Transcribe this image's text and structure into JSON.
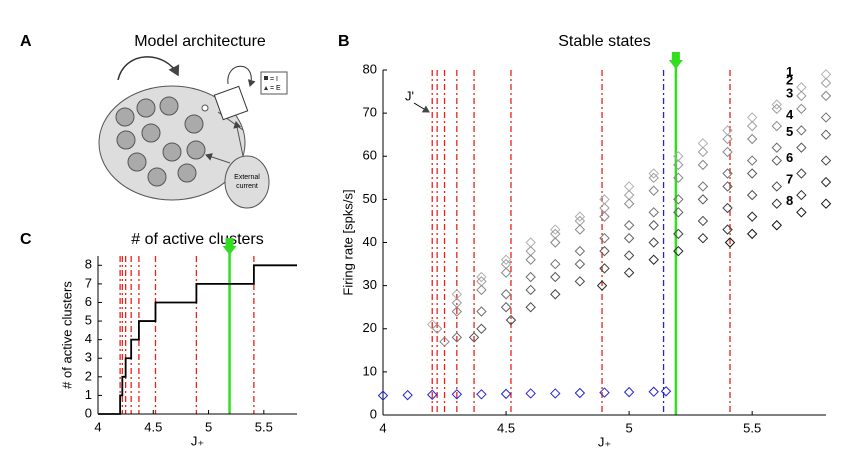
{
  "panel_labels": [
    "A",
    "B",
    "C"
  ],
  "diagram": {
    "title": "Model architecture",
    "legend": [
      "= I",
      "= E"
    ],
    "input_label": [
      "External",
      "current"
    ]
  },
  "chart_data": [
    {
      "type": "scatter",
      "title": "Stable states",
      "xlabel": "J₊",
      "ylabel": "Firing rate [spks/s]",
      "xlim": [
        4,
        5.8
      ],
      "ylim": [
        0,
        80
      ],
      "xticks": [
        4,
        4.5,
        5,
        5.5
      ],
      "yticks": [
        0,
        10,
        20,
        30,
        40,
        50,
        60,
        70,
        80
      ],
      "annotation": "J'",
      "vlines": [
        {
          "x": 4.2,
          "color": "#e8221b"
        },
        {
          "x": 4.22,
          "color": "#e8221b"
        },
        {
          "x": 4.25,
          "color": "#e8221b"
        },
        {
          "x": 4.3,
          "color": "#e8221b"
        },
        {
          "x": 4.37,
          "color": "#e8221b"
        },
        {
          "x": 4.52,
          "color": "#e8221b"
        },
        {
          "x": 4.89,
          "color": "#e8221b"
        },
        {
          "x": 5.41,
          "color": "#e8221b"
        },
        {
          "x": 5.14,
          "color": "#2323d6"
        }
      ],
      "marker_x": 5.19,
      "marker_color": "#33dd22",
      "series": [
        {
          "name": "1",
          "color": "#b0b0b0",
          "x": [
            4.2,
            4.3,
            4.4,
            4.5,
            4.6,
            4.7,
            4.8,
            4.9,
            5.0,
            5.1,
            5.2,
            5.3,
            5.4,
            5.5,
            5.6,
            5.7,
            5.8
          ],
          "values": [
            21,
            28,
            32,
            36,
            40,
            43,
            46,
            50,
            53,
            56,
            60,
            63,
            66,
            69,
            72,
            76,
            79
          ]
        },
        {
          "name": "2",
          "color": "#9a9a9a",
          "x": [
            4.22,
            4.3,
            4.4,
            4.5,
            4.6,
            4.7,
            4.8,
            4.9,
            5.0,
            5.1,
            5.2,
            5.3,
            5.4,
            5.5,
            5.6,
            5.7,
            5.8
          ],
          "values": [
            20,
            26,
            31,
            35,
            38,
            42,
            45,
            48,
            51,
            55,
            58,
            61,
            64,
            67,
            71,
            74,
            77
          ]
        },
        {
          "name": "3",
          "color": "#858585",
          "x": [
            4.25,
            4.3,
            4.4,
            4.5,
            4.6,
            4.7,
            4.8,
            4.9,
            5.0,
            5.1,
            5.2,
            5.3,
            5.4,
            5.5,
            5.6,
            5.7,
            5.8
          ],
          "values": [
            17,
            24,
            29,
            33,
            36,
            40,
            43,
            46,
            49,
            52,
            55,
            58,
            61,
            64,
            67,
            71,
            74
          ]
        },
        {
          "name": "4",
          "color": "#707070",
          "x": [
            4.3,
            4.4,
            4.5,
            4.6,
            4.7,
            4.8,
            4.9,
            5.0,
            5.1,
            5.2,
            5.3,
            5.4,
            5.5,
            5.6,
            5.7,
            5.8
          ],
          "values": [
            18,
            24,
            28,
            32,
            35,
            38,
            41,
            44,
            47,
            50,
            53,
            56,
            59,
            62,
            66,
            69
          ]
        },
        {
          "name": "5",
          "color": "#5a5a5a",
          "x": [
            4.37,
            4.4,
            4.5,
            4.6,
            4.7,
            4.8,
            4.9,
            5.0,
            5.1,
            5.2,
            5.3,
            5.4,
            5.5,
            5.6,
            5.7,
            5.8
          ],
          "values": [
            18,
            20,
            25,
            29,
            32,
            35,
            38,
            41,
            44,
            47,
            50,
            53,
            56,
            59,
            62,
            65
          ]
        },
        {
          "name": "6",
          "color": "#454545",
          "x": [
            4.52,
            4.6,
            4.7,
            4.8,
            4.9,
            5.0,
            5.1,
            5.2,
            5.3,
            5.4,
            5.5,
            5.6,
            5.7,
            5.8
          ],
          "values": [
            22,
            25,
            28,
            31,
            34,
            37,
            40,
            42,
            45,
            48,
            51,
            53,
            56,
            59
          ]
        },
        {
          "name": "7",
          "color": "#2a2a2a",
          "x": [
            4.89,
            5.0,
            5.1,
            5.2,
            5.3,
            5.4,
            5.5,
            5.6,
            5.7,
            5.8
          ],
          "values": [
            30,
            33,
            36,
            38,
            41,
            43,
            46,
            49,
            51,
            54
          ]
        },
        {
          "name": "8",
          "color": "#111111",
          "x": [
            5.41,
            5.5,
            5.6,
            5.7,
            5.8
          ],
          "values": [
            40,
            42,
            44,
            47,
            49
          ]
        },
        {
          "color": "#2323d6",
          "x": [
            4.0,
            4.1,
            4.2,
            4.3,
            4.4,
            4.5,
            4.6,
            4.7,
            4.8,
            4.9,
            5.0,
            5.1,
            5.15
          ],
          "values": [
            4.5,
            4.6,
            4.7,
            4.8,
            4.8,
            4.9,
            5,
            5,
            5.1,
            5.2,
            5.3,
            5.4,
            5.5
          ]
        }
      ]
    },
    {
      "type": "step",
      "title": "# of active clusters",
      "xlabel": "J₊",
      "ylabel": "# of active clusters",
      "xlim": [
        4,
        5.8
      ],
      "ylim": [
        0,
        8.5
      ],
      "xticks": [
        4,
        4.5,
        5,
        5.5
      ],
      "yticks": [
        0,
        1,
        2,
        3,
        4,
        5,
        6,
        7,
        8
      ],
      "vlines": [
        {
          "x": 4.2,
          "color": "#e8221b"
        },
        {
          "x": 4.22,
          "color": "#e8221b"
        },
        {
          "x": 4.25,
          "color": "#e8221b"
        },
        {
          "x": 4.3,
          "color": "#e8221b"
        },
        {
          "x": 4.37,
          "color": "#e8221b"
        },
        {
          "x": 4.52,
          "color": "#e8221b"
        },
        {
          "x": 4.89,
          "color": "#e8221b"
        },
        {
          "x": 5.41,
          "color": "#e8221b"
        }
      ],
      "marker_x": 5.19,
      "marker_color": "#33dd22",
      "color": "#000000",
      "x": [
        4,
        4.2,
        4.22,
        4.25,
        4.3,
        4.37,
        4.52,
        4.89,
        5.41
      ],
      "values": [
        0,
        1,
        2,
        3,
        4,
        5,
        6,
        7,
        8
      ]
    }
  ]
}
